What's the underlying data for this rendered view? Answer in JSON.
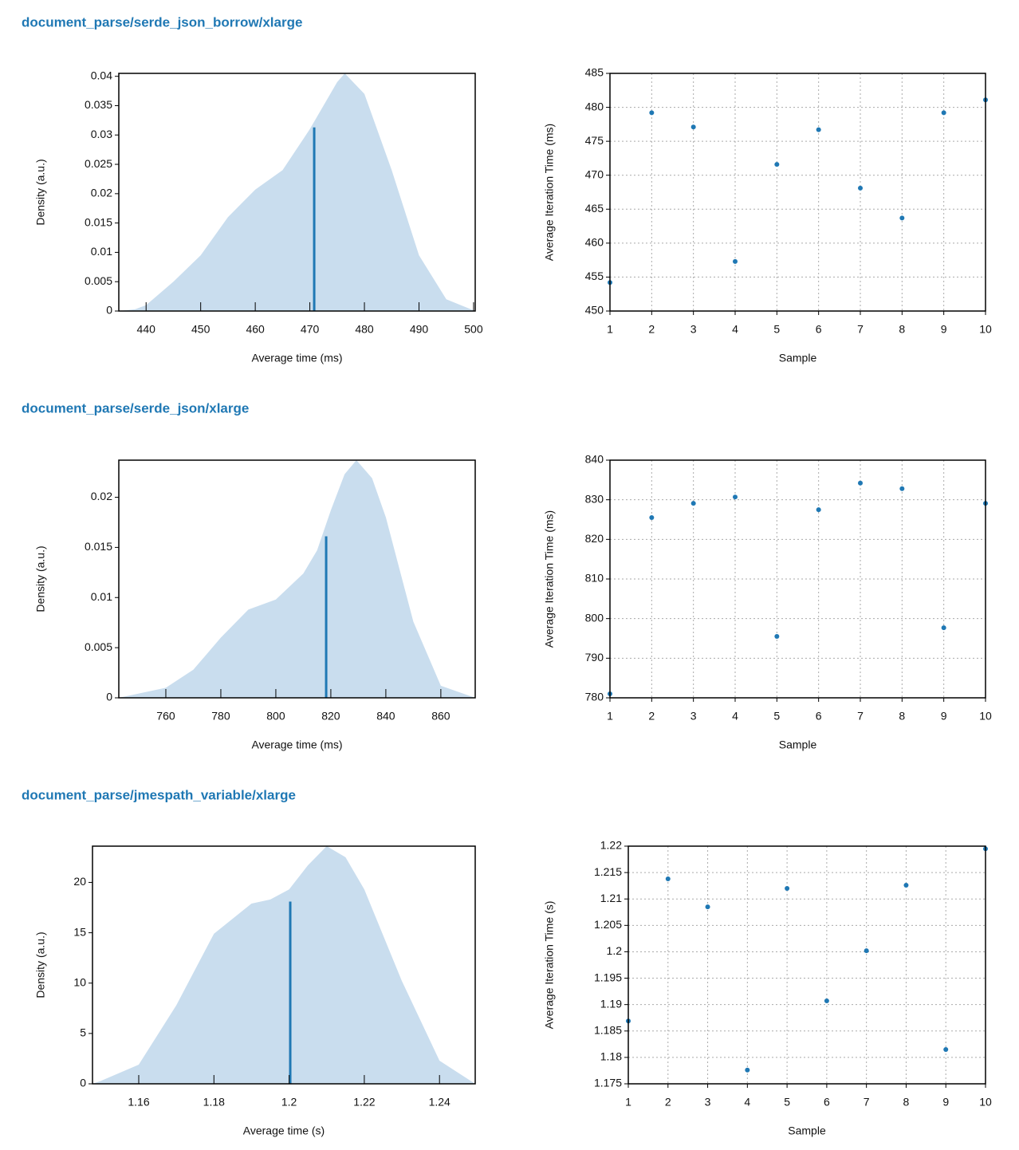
{
  "sections": [
    {
      "title": "document_parse/serde_json_borrow/xlarge"
    },
    {
      "title": "document_parse/serde_json/xlarge"
    },
    {
      "title": "document_parse/jmespath_variable/xlarge"
    }
  ],
  "chart_data": [
    {
      "type": "area",
      "xlabel": "Average time (ms)",
      "ylabel": "Density (a.u.)",
      "x": [
        435,
        438,
        440,
        445,
        450,
        455,
        460,
        465,
        470,
        475,
        476.4,
        480,
        485,
        490,
        495,
        500.3
      ],
      "values": [
        0,
        0.0003,
        0.001,
        0.005,
        0.0095,
        0.016,
        0.0207,
        0.024,
        0.031,
        0.039,
        0.0405,
        0.037,
        0.024,
        0.0095,
        0.002,
        0
      ],
      "mean": {
        "x": 470.8,
        "y": 0.0313
      },
      "xlim": [
        435,
        500.3
      ],
      "ylim": [
        0,
        0.0405
      ],
      "xticks": [
        440,
        450,
        460,
        470,
        480,
        490,
        500
      ],
      "yticks": [
        0,
        0.005,
        0.01,
        0.015,
        0.02,
        0.025,
        0.03,
        0.035,
        0.04
      ],
      "color": "#1f78b4",
      "fill_color": "#c9ddee",
      "grid": false
    },
    {
      "type": "scatter",
      "xlabel": "Sample",
      "ylabel": "Average Iteration Time (ms)",
      "x": [
        1,
        2,
        3,
        4,
        5,
        6,
        7,
        8,
        9,
        10
      ],
      "values": [
        454.2,
        479.2,
        477.1,
        457.3,
        471.6,
        476.7,
        468.1,
        463.7,
        479.2,
        481.1
      ],
      "xlim": [
        1,
        10
      ],
      "ylim": [
        450,
        485
      ],
      "xticks": [
        1,
        2,
        3,
        4,
        5,
        6,
        7,
        8,
        9,
        10
      ],
      "yticks": [
        450,
        455,
        460,
        465,
        470,
        475,
        480,
        485
      ],
      "color": "#1f78b4",
      "grid": true
    },
    {
      "type": "area",
      "xlabel": "Average time (ms)",
      "ylabel": "Density (a.u.)",
      "x": [
        742.9,
        760,
        770,
        780,
        790,
        800,
        810,
        815,
        820,
        825,
        829.3,
        835,
        840,
        850,
        860,
        872.5
      ],
      "values": [
        0,
        0.001,
        0.0028,
        0.006,
        0.0088,
        0.0098,
        0.0124,
        0.0147,
        0.0187,
        0.0223,
        0.0237,
        0.0219,
        0.018,
        0.0076,
        0.0012,
        0
      ],
      "mean": {
        "x": 818.3,
        "y": 0.0161
      },
      "xlim": [
        742.9,
        872.5
      ],
      "ylim": [
        0,
        0.0237
      ],
      "xticks": [
        760,
        780,
        800,
        820,
        840,
        860
      ],
      "yticks": [
        0,
        0.005,
        0.01,
        0.015,
        0.02
      ],
      "color": "#1f78b4",
      "fill_color": "#c9ddee",
      "grid": false
    },
    {
      "type": "scatter",
      "xlabel": "Sample",
      "ylabel": "Average Iteration Time (ms)",
      "x": [
        1,
        2,
        3,
        4,
        5,
        6,
        7,
        8,
        9,
        10
      ],
      "values": [
        781.0,
        825.5,
        829.1,
        830.7,
        795.5,
        827.5,
        834.2,
        832.8,
        797.7,
        829.1
      ],
      "xlim": [
        1,
        10
      ],
      "ylim": [
        780,
        840
      ],
      "xticks": [
        1,
        2,
        3,
        4,
        5,
        6,
        7,
        8,
        9,
        10
      ],
      "yticks": [
        780,
        790,
        800,
        810,
        820,
        830,
        840
      ],
      "color": "#1f78b4",
      "grid": true
    },
    {
      "type": "area",
      "xlabel": "Average time (s)",
      "ylabel": "Density (a.u.)",
      "x": [
        1.1477,
        1.15,
        1.16,
        1.17,
        1.18,
        1.19,
        1.195,
        1.2,
        1.205,
        1.21,
        1.215,
        1.22,
        1.23,
        1.24,
        1.2495
      ],
      "values": [
        0,
        0.3,
        1.9,
        7.8,
        14.9,
        17.9,
        18.3,
        19.3,
        21.7,
        23.6,
        22.5,
        19.3,
        10.2,
        2.3,
        0
      ],
      "mean": {
        "x": 1.2003,
        "y": 18.1
      },
      "xlim": [
        1.1477,
        1.2495
      ],
      "ylim": [
        0,
        23.6
      ],
      "xticks": [
        1.16,
        1.18,
        1.2,
        1.22,
        1.24
      ],
      "yticks": [
        0,
        5,
        10,
        15,
        20
      ],
      "color": "#1f78b4",
      "fill_color": "#c9ddee",
      "grid": false
    },
    {
      "type": "scatter",
      "xlabel": "Sample",
      "ylabel": "Average Iteration Time (s)",
      "x": [
        1,
        2,
        3,
        4,
        5,
        6,
        7,
        8,
        9,
        10
      ],
      "values": [
        1.1869,
        1.2138,
        1.2085,
        1.1776,
        1.212,
        1.1907,
        1.2002,
        1.2126,
        1.1815,
        1.2195
      ],
      "xlim": [
        1,
        10
      ],
      "ylim": [
        1.175,
        1.22
      ],
      "xticks": [
        1,
        2,
        3,
        4,
        5,
        6,
        7,
        8,
        9,
        10
      ],
      "yticks": [
        1.175,
        1.18,
        1.185,
        1.19,
        1.195,
        1.2,
        1.205,
        1.21,
        1.215,
        1.22
      ],
      "color": "#1f78b4",
      "grid": true
    }
  ]
}
